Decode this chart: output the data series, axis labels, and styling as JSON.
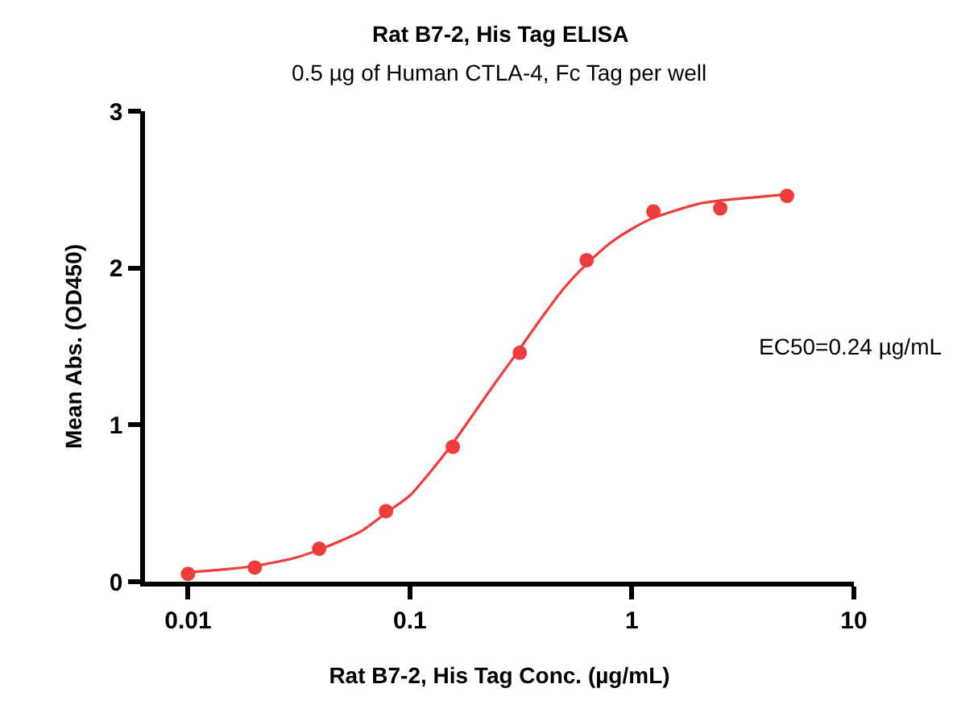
{
  "chart_data": {
    "type": "scatter",
    "title": "Rat B7-2, His Tag ELISA",
    "subtitle": "0.5 µg of Human CTLA-4, Fc Tag per well",
    "xlabel": "Rat B7-2, His Tag Conc. (µg/mL)",
    "ylabel": "Mean Abs. (OD450)",
    "annotations": [
      "EC50=0.24 µg/mL"
    ],
    "x": [
      0.01,
      0.02,
      0.039,
      0.078,
      0.156,
      0.3125,
      0.625,
      1.25,
      2.5,
      5
    ],
    "series": [
      {
        "color": "#f03c3c",
        "values": [
          0.05,
          0.09,
          0.21,
          0.45,
          0.86,
          1.46,
          2.05,
          2.36,
          2.38,
          2.46
        ],
        "marker": "circle"
      },
      {
        "type": "line",
        "color": "#f03c3c",
        "x": [
          0.01,
          0.015,
          0.02,
          0.03,
          0.04,
          0.06,
          0.08,
          0.1,
          0.15,
          0.2,
          0.24,
          0.3,
          0.4,
          0.5,
          0.63,
          0.8,
          1,
          1.25,
          1.6,
          2,
          2.5,
          3.5,
          5
        ],
        "values": [
          0.06,
          0.08,
          0.1,
          0.15,
          0.21,
          0.32,
          0.45,
          0.55,
          0.85,
          1.1,
          1.26,
          1.45,
          1.7,
          1.88,
          2.03,
          2.16,
          2.25,
          2.32,
          2.37,
          2.41,
          2.43,
          2.45,
          2.47
        ],
        "line_style": "solid",
        "marker": "none"
      }
    ],
    "log": "x",
    "xlim": [
      0.0064,
      10
    ],
    "xticks": [
      0.01,
      0.1,
      1,
      10
    ],
    "ylim": [
      0,
      3
    ],
    "yticks": [
      0,
      1,
      2,
      3
    ]
  }
}
